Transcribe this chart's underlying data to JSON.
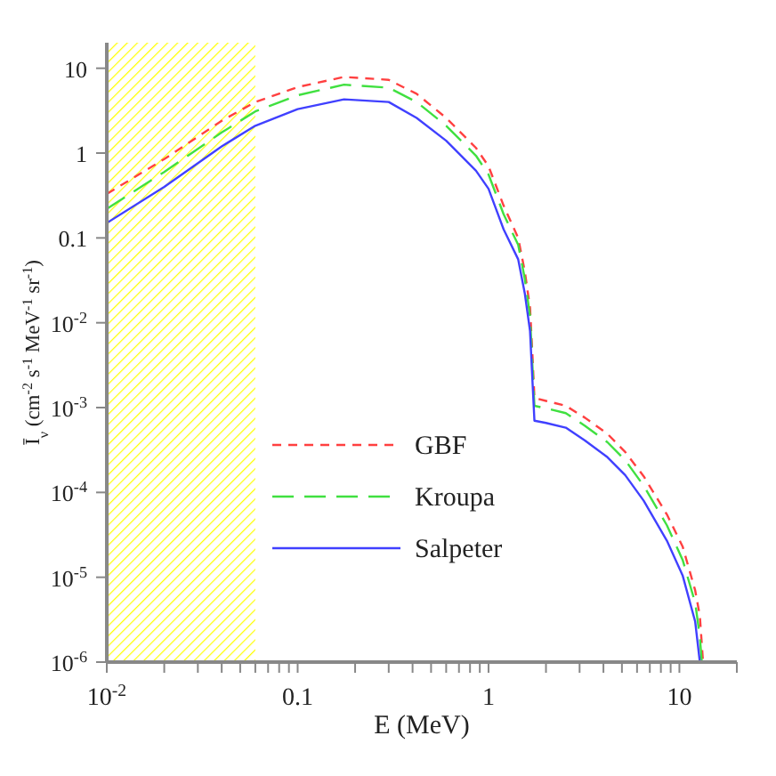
{
  "chart_data": {
    "type": "line",
    "xlabel": "E (MeV)",
    "ylabel": "Ī$_{ν}$ (cm$^{-2}$ s$^{-1}$ MeV$^{-1}$ sr$^{-1}$)",
    "log": "xy",
    "grid": false,
    "legend": "center",
    "xlim": [
      0.01,
      20
    ],
    "ylim": [
      1e-06,
      20
    ],
    "xticks": [
      {
        "value": 0.01,
        "label": "10$^{-2}$"
      },
      {
        "value": 0.02,
        "label": null
      },
      {
        "value": 0.03,
        "label": null
      },
      {
        "value": 0.04,
        "label": null
      },
      {
        "value": 0.05,
        "label": null
      },
      {
        "value": 0.06,
        "label": null
      },
      {
        "value": 0.07,
        "label": null
      },
      {
        "value": 0.08,
        "label": null
      },
      {
        "value": 0.09,
        "label": null
      },
      0.1,
      {
        "value": 0.2,
        "label": null
      },
      {
        "value": 0.3,
        "label": null
      },
      {
        "value": 0.4,
        "label": null
      },
      {
        "value": 0.5,
        "label": null
      },
      {
        "value": 0.6,
        "label": null
      },
      {
        "value": 0.7,
        "label": null
      },
      {
        "value": 0.8,
        "label": null
      },
      {
        "value": 0.9,
        "label": null
      },
      1,
      {
        "value": 2,
        "label": null
      },
      {
        "value": 3,
        "label": null
      },
      {
        "value": 4,
        "label": null
      },
      {
        "value": 5,
        "label": null
      },
      {
        "value": 6,
        "label": null
      },
      {
        "value": 7,
        "label": null
      },
      {
        "value": 8,
        "label": null
      },
      {
        "value": 9,
        "label": null
      },
      10,
      {
        "value": 20,
        "label": null
      }
    ],
    "yticks": [
      {
        "value": 1e-06,
        "label": "10$^{-6}$"
      },
      {
        "value": 1e-05,
        "label": "10$^{-5}$"
      },
      {
        "value": 0.0001,
        "label": "10$^{-4}$"
      },
      {
        "value": 0.001,
        "label": "10$^{-3}$"
      },
      {
        "value": 0.01,
        "label": "10$^{-2}$"
      },
      0.1,
      1,
      10
    ],
    "bands": [
      {
        "axis": "x",
        "from": 0.01,
        "to": 0.06,
        "color": "#ffff00"
      }
    ],
    "series": [
      {
        "name": "GBF",
        "color": "#ff4040",
        "line_style": "dashed",
        "x": [
          0.01,
          0.02,
          0.04,
          0.06,
          0.1,
          0.175,
          0.3,
          0.42,
          0.6,
          0.86,
          1.0,
          1.2,
          1.43,
          1.55,
          1.65,
          1.7,
          1.74,
          2.0,
          2.54,
          3.2,
          4.2,
          5.2,
          6.5,
          8.6,
          10.4,
          12.1,
          12.8,
          13.3
        ],
        "values": [
          0.33,
          0.85,
          2.4,
          4.0,
          6.0,
          7.9,
          7.3,
          5.0,
          2.6,
          1.15,
          0.7,
          0.24,
          0.1,
          0.04,
          0.015,
          0.004,
          0.0013,
          0.0012,
          0.00105,
          0.00076,
          0.00049,
          0.0003,
          0.000155,
          5.5e-05,
          2.3e-05,
          7e-06,
          3.5e-06,
          1e-06
        ]
      },
      {
        "name": "Kroupa",
        "color": "#40e040",
        "line_style": "dashed",
        "x": [
          0.01,
          0.02,
          0.04,
          0.06,
          0.1,
          0.175,
          0.3,
          0.42,
          0.6,
          0.86,
          1.0,
          1.2,
          1.43,
          1.55,
          1.65,
          1.7,
          1.74,
          2.0,
          2.54,
          3.2,
          4.2,
          5.2,
          6.5,
          8.6,
          10.4,
          12.1,
          12.8,
          13.1
        ],
        "values": [
          0.22,
          0.6,
          1.75,
          3.1,
          4.8,
          6.4,
          5.9,
          4.0,
          2.1,
          0.93,
          0.56,
          0.19,
          0.083,
          0.033,
          0.012,
          0.003,
          0.00105,
          0.00098,
          0.00086,
          0.00061,
          0.00039,
          0.00024,
          0.00012,
          4.1e-05,
          1.6e-05,
          5e-06,
          2e-06,
          1e-06
        ]
      },
      {
        "name": "Salpeter",
        "color": "#4040ff",
        "line_style": "solid",
        "x": [
          0.01,
          0.02,
          0.04,
          0.06,
          0.1,
          0.175,
          0.3,
          0.42,
          0.6,
          0.86,
          1.0,
          1.2,
          1.43,
          1.55,
          1.65,
          1.7,
          1.74,
          2.0,
          2.54,
          3.2,
          4.2,
          5.2,
          6.5,
          8.6,
          10.4,
          12.1,
          12.8
        ],
        "values": [
          0.15,
          0.4,
          1.2,
          2.1,
          3.3,
          4.3,
          4.0,
          2.6,
          1.4,
          0.62,
          0.38,
          0.126,
          0.056,
          0.022,
          0.008,
          0.002,
          0.0007,
          0.00066,
          0.00058,
          0.00041,
          0.00026,
          0.00016,
          8e-05,
          2.7e-05,
          1.05e-05,
          3e-06,
          1e-06
        ]
      }
    ]
  }
}
